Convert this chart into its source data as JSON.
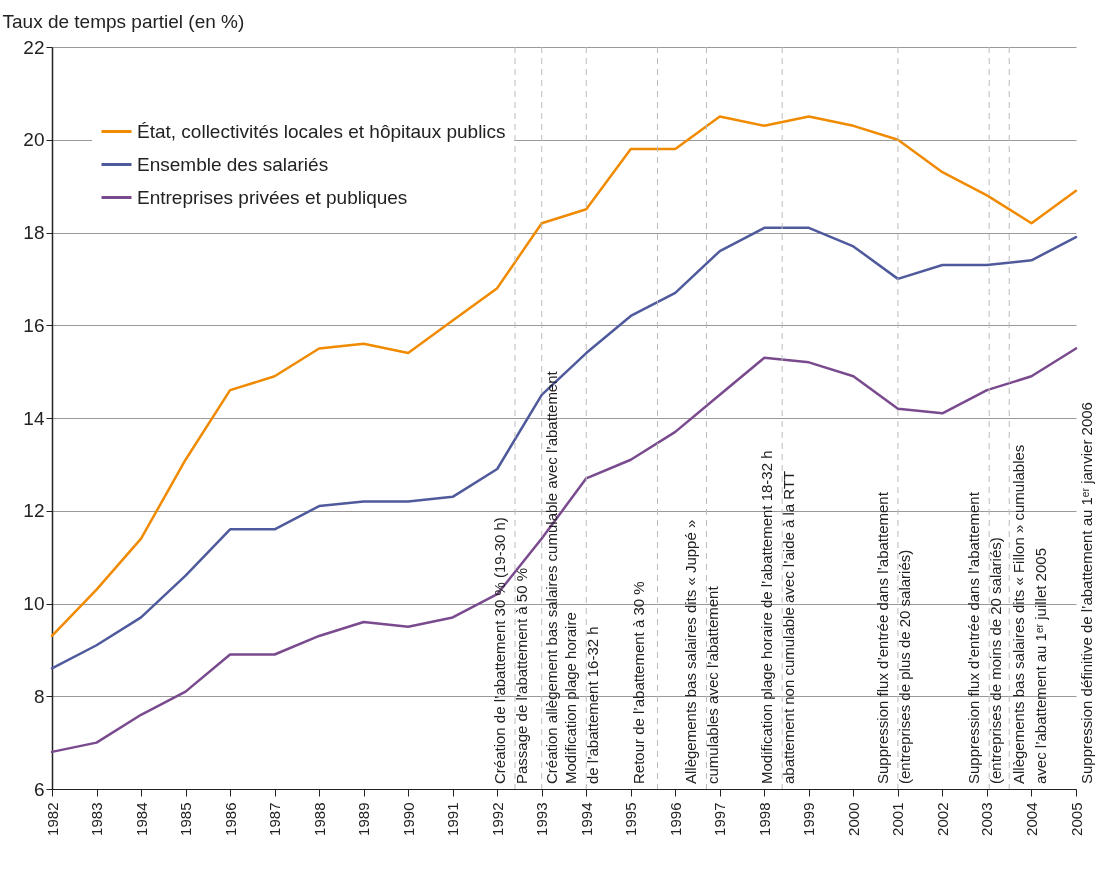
{
  "chart_data": {
    "type": "line",
    "ylabel": "Taux de temps partiel (en %)",
    "x": [
      1982,
      1983,
      1984,
      1985,
      1986,
      1987,
      1988,
      1989,
      1990,
      1991,
      1992,
      1993,
      1994,
      1995,
      1996,
      1997,
      1998,
      1999,
      2000,
      2001,
      2002,
      2003,
      2004,
      2005
    ],
    "xlim": [
      1982,
      2005
    ],
    "xticks": [
      1982,
      1983,
      1984,
      1985,
      1986,
      1987,
      1988,
      1989,
      1990,
      1991,
      1992,
      1993,
      1994,
      1995,
      1996,
      1997,
      1998,
      1999,
      2000,
      2001,
      2002,
      2003,
      2004,
      2005
    ],
    "ylim": [
      6,
      22
    ],
    "yticks": [
      6,
      8,
      10,
      12,
      14,
      16,
      18,
      20,
      22
    ],
    "grid": "y",
    "legend": "top left",
    "series": [
      {
        "name": "État, collectivités locales et hôpitaux publics",
        "color": "#f08a00",
        "values": [
          9.3,
          10.3,
          11.4,
          13.1,
          14.6,
          14.9,
          15.5,
          15.6,
          15.4,
          16.1,
          16.8,
          18.2,
          18.5,
          19.8,
          19.8,
          20.5,
          20.3,
          20.5,
          20.3,
          20.0,
          19.3,
          18.8,
          18.2,
          18.9
        ]
      },
      {
        "name": "Ensemble des salariés",
        "color": "#4f5a9c",
        "values": [
          8.6,
          9.1,
          9.7,
          10.6,
          11.6,
          11.6,
          12.1,
          12.2,
          12.2,
          12.3,
          12.9,
          14.5,
          15.4,
          16.2,
          16.7,
          17.6,
          18.1,
          18.1,
          17.7,
          17.0,
          17.3,
          17.3,
          17.4,
          17.9
        ]
      },
      {
        "name": "Entreprises privées et publiques",
        "color": "#7a4a8e",
        "values": [
          6.8,
          7.0,
          7.6,
          8.1,
          8.9,
          8.9,
          9.3,
          9.6,
          9.5,
          9.7,
          10.2,
          11.4,
          12.7,
          13.1,
          13.7,
          14.5,
          15.3,
          15.2,
          14.9,
          14.2,
          14.1,
          14.6,
          14.9,
          15.5
        ]
      }
    ],
    "ref_lines": [
      {
        "axis": "x",
        "value": 1992.4,
        "color": "#bbbbbb",
        "line_style": "dashed",
        "label": "Création de l’abattement 30 % (19-30 h)\nPassage de l’abattement à 50 %"
      },
      {
        "axis": "x",
        "value": 1993.0,
        "color": "#bbbbbb",
        "line_style": "dashed",
        "label": "Création allègement bas salaires cumulable avec l’abattement"
      },
      {
        "axis": "x",
        "value": 1994.0,
        "color": "#bbbbbb",
        "line_style": "dashed",
        "label": "Modification plage horaire\nde l’abattement 16-32 h"
      },
      {
        "axis": "x",
        "value": 1995.6,
        "color": "#bbbbbb",
        "line_style": "dashed",
        "label": "Retour de l’abattement à 30 %"
      },
      {
        "axis": "x",
        "value": 1996.7,
        "color": "#bbbbbb",
        "line_style": "dashed",
        "label": "Allègements bas salaires dits « Juppé »\ncumulables avec l’abattement"
      },
      {
        "axis": "x",
        "value": 1998.4,
        "color": "#bbbbbb",
        "line_style": "dashed",
        "label": "Modification plage horaire de l’abattement 18-32 h\nabattement non cumulable avec l’aide à la RTT"
      },
      {
        "axis": "x",
        "value": 2001.0,
        "color": "#bbbbbb",
        "line_style": "dashed",
        "label": "Suppression flux d’entrée dans l’abattement\n(entreprises de plus de 20 salariés)"
      },
      {
        "axis": "x",
        "value": 2003.05,
        "color": "#bbbbbb",
        "line_style": "dashed",
        "label": "Suppression flux d’entrée dans l’abattement\n(entreprises de moins de 20 salariés)"
      },
      {
        "axis": "x",
        "value": 2003.5,
        "color": "#bbbbbb",
        "line_style": "dashed",
        "label": "Allègements bas salaires dits « Fillon » cumulables\navec l’abattement au 1ᵉʳ juillet 2005"
      }
    ],
    "annotations": [
      "Suppression définitive de l’abattement au 1ᵉʳ janvier 2006"
    ]
  }
}
